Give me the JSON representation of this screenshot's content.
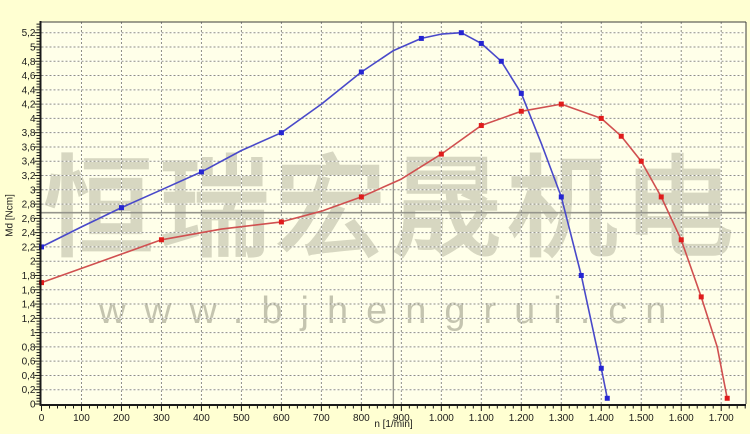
{
  "chart_data": {
    "type": "line",
    "title": "",
    "xlabel": "n [1/min]",
    "ylabel": "Md [Ncm]",
    "xlim": [
      0,
      1762
    ],
    "ylim": [
      0,
      5.35
    ],
    "x_tick_step": 100,
    "x_minor_tick_step": 20,
    "y_tick_step": 0.2,
    "y_minor_tick_step": 0.04,
    "grid": true,
    "legend_position": "none",
    "x_tick_labels": [
      "0",
      "100",
      "200",
      "300",
      "400",
      "500",
      "600",
      "700",
      "800",
      "900",
      "1.000",
      "1.100",
      "1.200",
      "1.300",
      "1.400",
      "1.500",
      "1.600",
      "1.700"
    ],
    "y_tick_labels": [
      "0",
      "0,2",
      "0,4",
      "0,6",
      "0,8",
      "1",
      "1,2",
      "1,4",
      "1,6",
      "1,8",
      "2",
      "2,2",
      "2,4",
      "2,6",
      "2,8",
      "3",
      "3,2",
      "3,4",
      "3,6",
      "3,8",
      "4",
      "4,2",
      "4,4",
      "4,6",
      "4,8",
      "5",
      "5,2"
    ],
    "reference_lines": [
      {
        "orientation": "vertical",
        "x": 880
      },
      {
        "orientation": "horizontal",
        "y": 2.68
      }
    ],
    "series": [
      {
        "name": "blue-torque-curve",
        "marker": "square",
        "points": [
          [
            0,
            2.2
          ],
          [
            100,
            2.48
          ],
          [
            200,
            2.75
          ],
          [
            300,
            3.0
          ],
          [
            400,
            3.25
          ],
          [
            500,
            3.55
          ],
          [
            600,
            3.8
          ],
          [
            700,
            4.2
          ],
          [
            800,
            4.65
          ],
          [
            880,
            4.95
          ],
          [
            950,
            5.12
          ],
          [
            1000,
            5.18
          ],
          [
            1050,
            5.2
          ],
          [
            1100,
            5.05
          ],
          [
            1150,
            4.8
          ],
          [
            1200,
            4.35
          ],
          [
            1250,
            3.65
          ],
          [
            1300,
            2.9
          ],
          [
            1350,
            1.8
          ],
          [
            1400,
            0.5
          ],
          [
            1415,
            0.08
          ]
        ],
        "marker_points": [
          [
            0,
            2.2
          ],
          [
            200,
            2.75
          ],
          [
            400,
            3.25
          ],
          [
            600,
            3.8
          ],
          [
            800,
            4.65
          ],
          [
            950,
            5.12
          ],
          [
            1050,
            5.2
          ],
          [
            1100,
            5.05
          ],
          [
            1150,
            4.8
          ],
          [
            1200,
            4.35
          ],
          [
            1300,
            2.9
          ],
          [
            1350,
            1.8
          ],
          [
            1400,
            0.5
          ],
          [
            1415,
            0.08
          ]
        ]
      },
      {
        "name": "red-torque-curve",
        "marker": "square",
        "points": [
          [
            0,
            1.7
          ],
          [
            150,
            2.0
          ],
          [
            300,
            2.3
          ],
          [
            450,
            2.45
          ],
          [
            600,
            2.55
          ],
          [
            700,
            2.7
          ],
          [
            800,
            2.9
          ],
          [
            900,
            3.15
          ],
          [
            1000,
            3.5
          ],
          [
            1100,
            3.9
          ],
          [
            1200,
            4.1
          ],
          [
            1300,
            4.2
          ],
          [
            1400,
            4.0
          ],
          [
            1450,
            3.75
          ],
          [
            1500,
            3.4
          ],
          [
            1550,
            2.9
          ],
          [
            1600,
            2.3
          ],
          [
            1650,
            1.5
          ],
          [
            1690,
            0.8
          ],
          [
            1715,
            0.08
          ]
        ],
        "marker_points": [
          [
            0,
            1.7
          ],
          [
            300,
            2.3
          ],
          [
            600,
            2.55
          ],
          [
            800,
            2.9
          ],
          [
            1000,
            3.5
          ],
          [
            1100,
            3.9
          ],
          [
            1200,
            4.1
          ],
          [
            1300,
            4.2
          ],
          [
            1400,
            4.0
          ],
          [
            1450,
            3.75
          ],
          [
            1500,
            3.4
          ],
          [
            1550,
            2.9
          ],
          [
            1600,
            2.3
          ],
          [
            1650,
            1.5
          ],
          [
            1715,
            0.08
          ]
        ]
      }
    ]
  },
  "watermark": {
    "text_cn": "恒瑞宏晟机电",
    "text_url": "www.bjhengrui.cn"
  },
  "colors": {
    "background": "#ffffd2",
    "plot_background": "#ffffe9",
    "grid": "#8f8f85",
    "grid_underlay": "#ffffff",
    "axis": "#1a1a1a",
    "border": "#3c3c3c",
    "reference_line": "#95958c",
    "tick_label": "#1a1a1a",
    "blue_line": "#4949c9",
    "blue_marker": "#2525d2",
    "red_line": "#d05050",
    "red_marker": "#e01c1c",
    "watermark_cn": "rgba(150,150,130,0.38)",
    "watermark_url": "rgba(148,148,128,0.55)"
  }
}
